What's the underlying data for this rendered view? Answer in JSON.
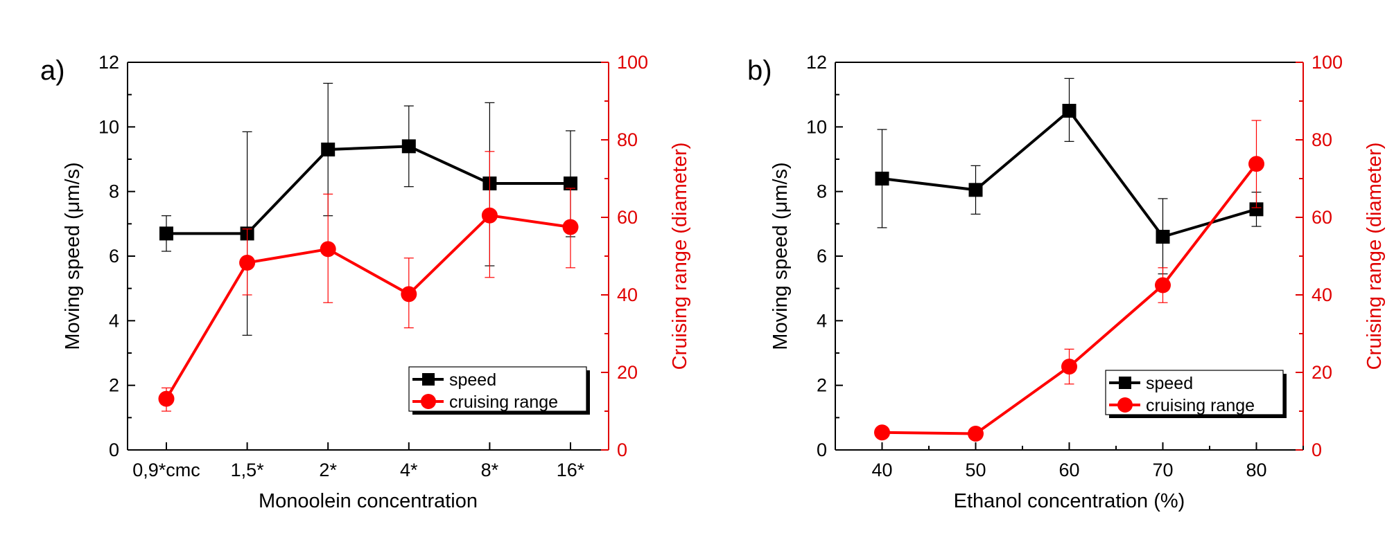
{
  "chart_data": [
    {
      "type": "line",
      "panel_label": "a)",
      "xlabel": "Monoolein concentration",
      "ylabel_left": "Moving speed (μm/s)",
      "ylabel_right": "Cruising range (diameter)",
      "categories": [
        "0,9*cmc",
        "1,5*",
        "2*",
        "4*",
        "8*",
        "16*"
      ],
      "ylim_left": [
        0,
        12
      ],
      "yticks_left": [
        "0",
        "2",
        "4",
        "6",
        "8",
        "10",
        "12"
      ],
      "ylim_right": [
        0,
        100
      ],
      "yticks_right": [
        "0",
        "20",
        "40",
        "60",
        "80",
        "100"
      ],
      "legend": [
        "speed",
        "cruising range"
      ],
      "legend_position": "lower-right",
      "series": [
        {
          "name": "speed",
          "axis": "left",
          "color": "#000000",
          "marker": "square",
          "values": [
            6.7,
            6.7,
            9.3,
            9.4,
            8.25,
            8.25
          ],
          "err_low": [
            6.15,
            3.55,
            7.25,
            8.15,
            5.7,
            6.6
          ],
          "err_high": [
            7.25,
            9.85,
            11.35,
            10.65,
            10.75,
            9.88
          ]
        },
        {
          "name": "cruising range",
          "axis": "right",
          "color": "#ff0000",
          "marker": "circle",
          "values": [
            13.2,
            48.3,
            51.8,
            40.2,
            60.5,
            57.5
          ],
          "err_low": [
            10,
            40,
            38,
            31.5,
            44.5,
            47
          ],
          "err_high": [
            16,
            57,
            66,
            49.5,
            77,
            67.5
          ]
        }
      ]
    },
    {
      "type": "line",
      "panel_label": "b)",
      "xlabel": "Ethanol concentration (%)",
      "ylabel_left": "Moving speed (μm/s)",
      "ylabel_right": "Cruising range (diameter)",
      "x": [
        40,
        50,
        60,
        70,
        80
      ],
      "xlim": [
        35,
        85
      ],
      "xticks": [
        "40",
        "50",
        "60",
        "70",
        "80"
      ],
      "ylim_left": [
        0,
        12
      ],
      "yticks_left": [
        "0",
        "2",
        "4",
        "6",
        "8",
        "10",
        "12"
      ],
      "ylim_right": [
        0,
        100
      ],
      "yticks_right": [
        "0",
        "20",
        "40",
        "60",
        "80",
        "100"
      ],
      "legend": [
        "speed",
        "cruising range"
      ],
      "legend_position": "lower-right",
      "series": [
        {
          "name": "speed",
          "axis": "left",
          "color": "#000000",
          "marker": "square",
          "values": [
            8.4,
            8.05,
            10.5,
            6.6,
            7.45
          ],
          "err_low": [
            6.88,
            7.3,
            9.55,
            5.45,
            6.92
          ],
          "err_high": [
            9.92,
            8.8,
            11.5,
            7.78,
            7.98
          ]
        },
        {
          "name": "cruising range",
          "axis": "right",
          "color": "#ff0000",
          "marker": "circle",
          "values": [
            4.5,
            4.2,
            21.5,
            42.5,
            73.8
          ],
          "err_low": [
            null,
            null,
            17,
            38,
            62.5
          ],
          "err_high": [
            null,
            null,
            26,
            47,
            85
          ]
        }
      ]
    }
  ]
}
